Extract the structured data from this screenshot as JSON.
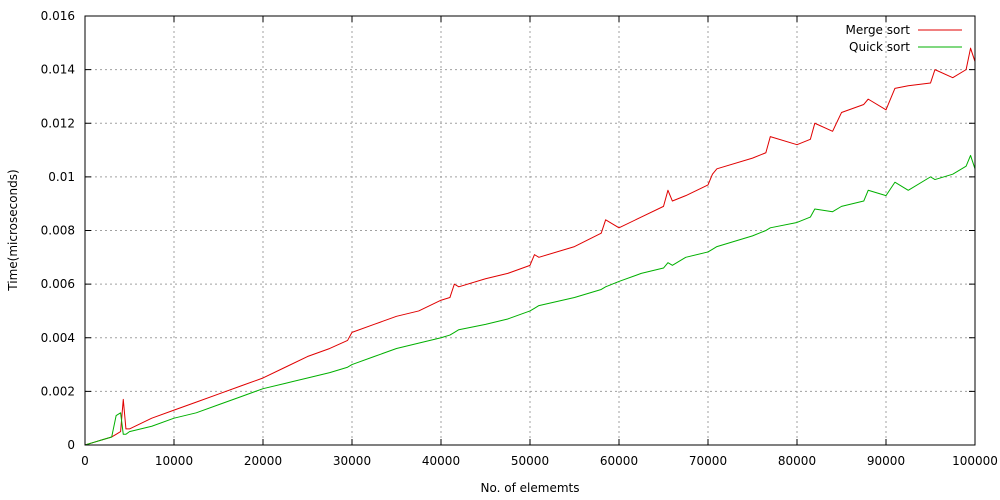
{
  "chart_data": {
    "type": "line",
    "title": "",
    "xlabel": "No. of elememts",
    "ylabel": "Time(microseconds)",
    "xlim": [
      0,
      100000
    ],
    "ylim": [
      0,
      0.016
    ],
    "grid": true,
    "legend_position": "top-right",
    "x_ticks": [
      "0",
      "10000",
      "20000",
      "30000",
      "40000",
      "50000",
      "60000",
      "70000",
      "80000",
      "90000",
      "100000"
    ],
    "y_ticks": [
      "0",
      "0.002",
      "0.004",
      "0.006",
      "0.008",
      "0.01",
      "0.012",
      "0.014",
      "0.016"
    ],
    "x": [
      0,
      1000,
      2000,
      3000,
      3500,
      4000,
      4300,
      4600,
      5000,
      7500,
      10000,
      12500,
      15000,
      17500,
      20000,
      22500,
      25000,
      27500,
      29500,
      30000,
      32500,
      35000,
      37500,
      40000,
      41000,
      41500,
      42000,
      45000,
      47500,
      50000,
      50500,
      51000,
      55000,
      58000,
      58500,
      60000,
      62500,
      65000,
      65500,
      66000,
      67500,
      70000,
      70500,
      71000,
      75000,
      76500,
      77000,
      80000,
      81500,
      82000,
      84000,
      85000,
      87500,
      88000,
      90000,
      91000,
      92500,
      95000,
      95500,
      97500,
      99000,
      99500,
      100000
    ],
    "series": [
      {
        "name": "Merge sort",
        "color": "#e00000",
        "values": [
          0,
          0.0001,
          0.0002,
          0.0003,
          0.0004,
          0.0005,
          0.0017,
          0.0006,
          0.0006,
          0.001,
          0.0013,
          0.0016,
          0.0019,
          0.0022,
          0.0025,
          0.0029,
          0.0033,
          0.0036,
          0.0039,
          0.0042,
          0.0045,
          0.0048,
          0.005,
          0.0054,
          0.0055,
          0.006,
          0.0059,
          0.0062,
          0.0064,
          0.0067,
          0.0071,
          0.007,
          0.0074,
          0.0079,
          0.0084,
          0.0081,
          0.0085,
          0.0089,
          0.0095,
          0.0091,
          0.0093,
          0.0097,
          0.0101,
          0.0103,
          0.0107,
          0.0109,
          0.0115,
          0.0112,
          0.0114,
          0.012,
          0.0117,
          0.0124,
          0.0127,
          0.0129,
          0.0125,
          0.0133,
          0.0134,
          0.0135,
          0.014,
          0.0137,
          0.014,
          0.0148,
          0.0143
        ]
      },
      {
        "name": "Quick sort",
        "color": "#00b000",
        "values": [
          0,
          0.0001,
          0.0002,
          0.0003,
          0.0011,
          0.0012,
          0.0004,
          0.0004,
          0.0005,
          0.0007,
          0.001,
          0.0012,
          0.0015,
          0.0018,
          0.0021,
          0.0023,
          0.0025,
          0.0027,
          0.0029,
          0.003,
          0.0033,
          0.0036,
          0.0038,
          0.004,
          0.0041,
          0.0042,
          0.0043,
          0.0045,
          0.0047,
          0.005,
          0.0051,
          0.0052,
          0.0055,
          0.0058,
          0.0059,
          0.0061,
          0.0064,
          0.0066,
          0.0068,
          0.0067,
          0.007,
          0.0072,
          0.0073,
          0.0074,
          0.0078,
          0.008,
          0.0081,
          0.0083,
          0.0085,
          0.0088,
          0.0087,
          0.0089,
          0.0091,
          0.0095,
          0.0093,
          0.0098,
          0.0095,
          0.01,
          0.0099,
          0.0101,
          0.0104,
          0.0108,
          0.0103
        ]
      }
    ]
  }
}
